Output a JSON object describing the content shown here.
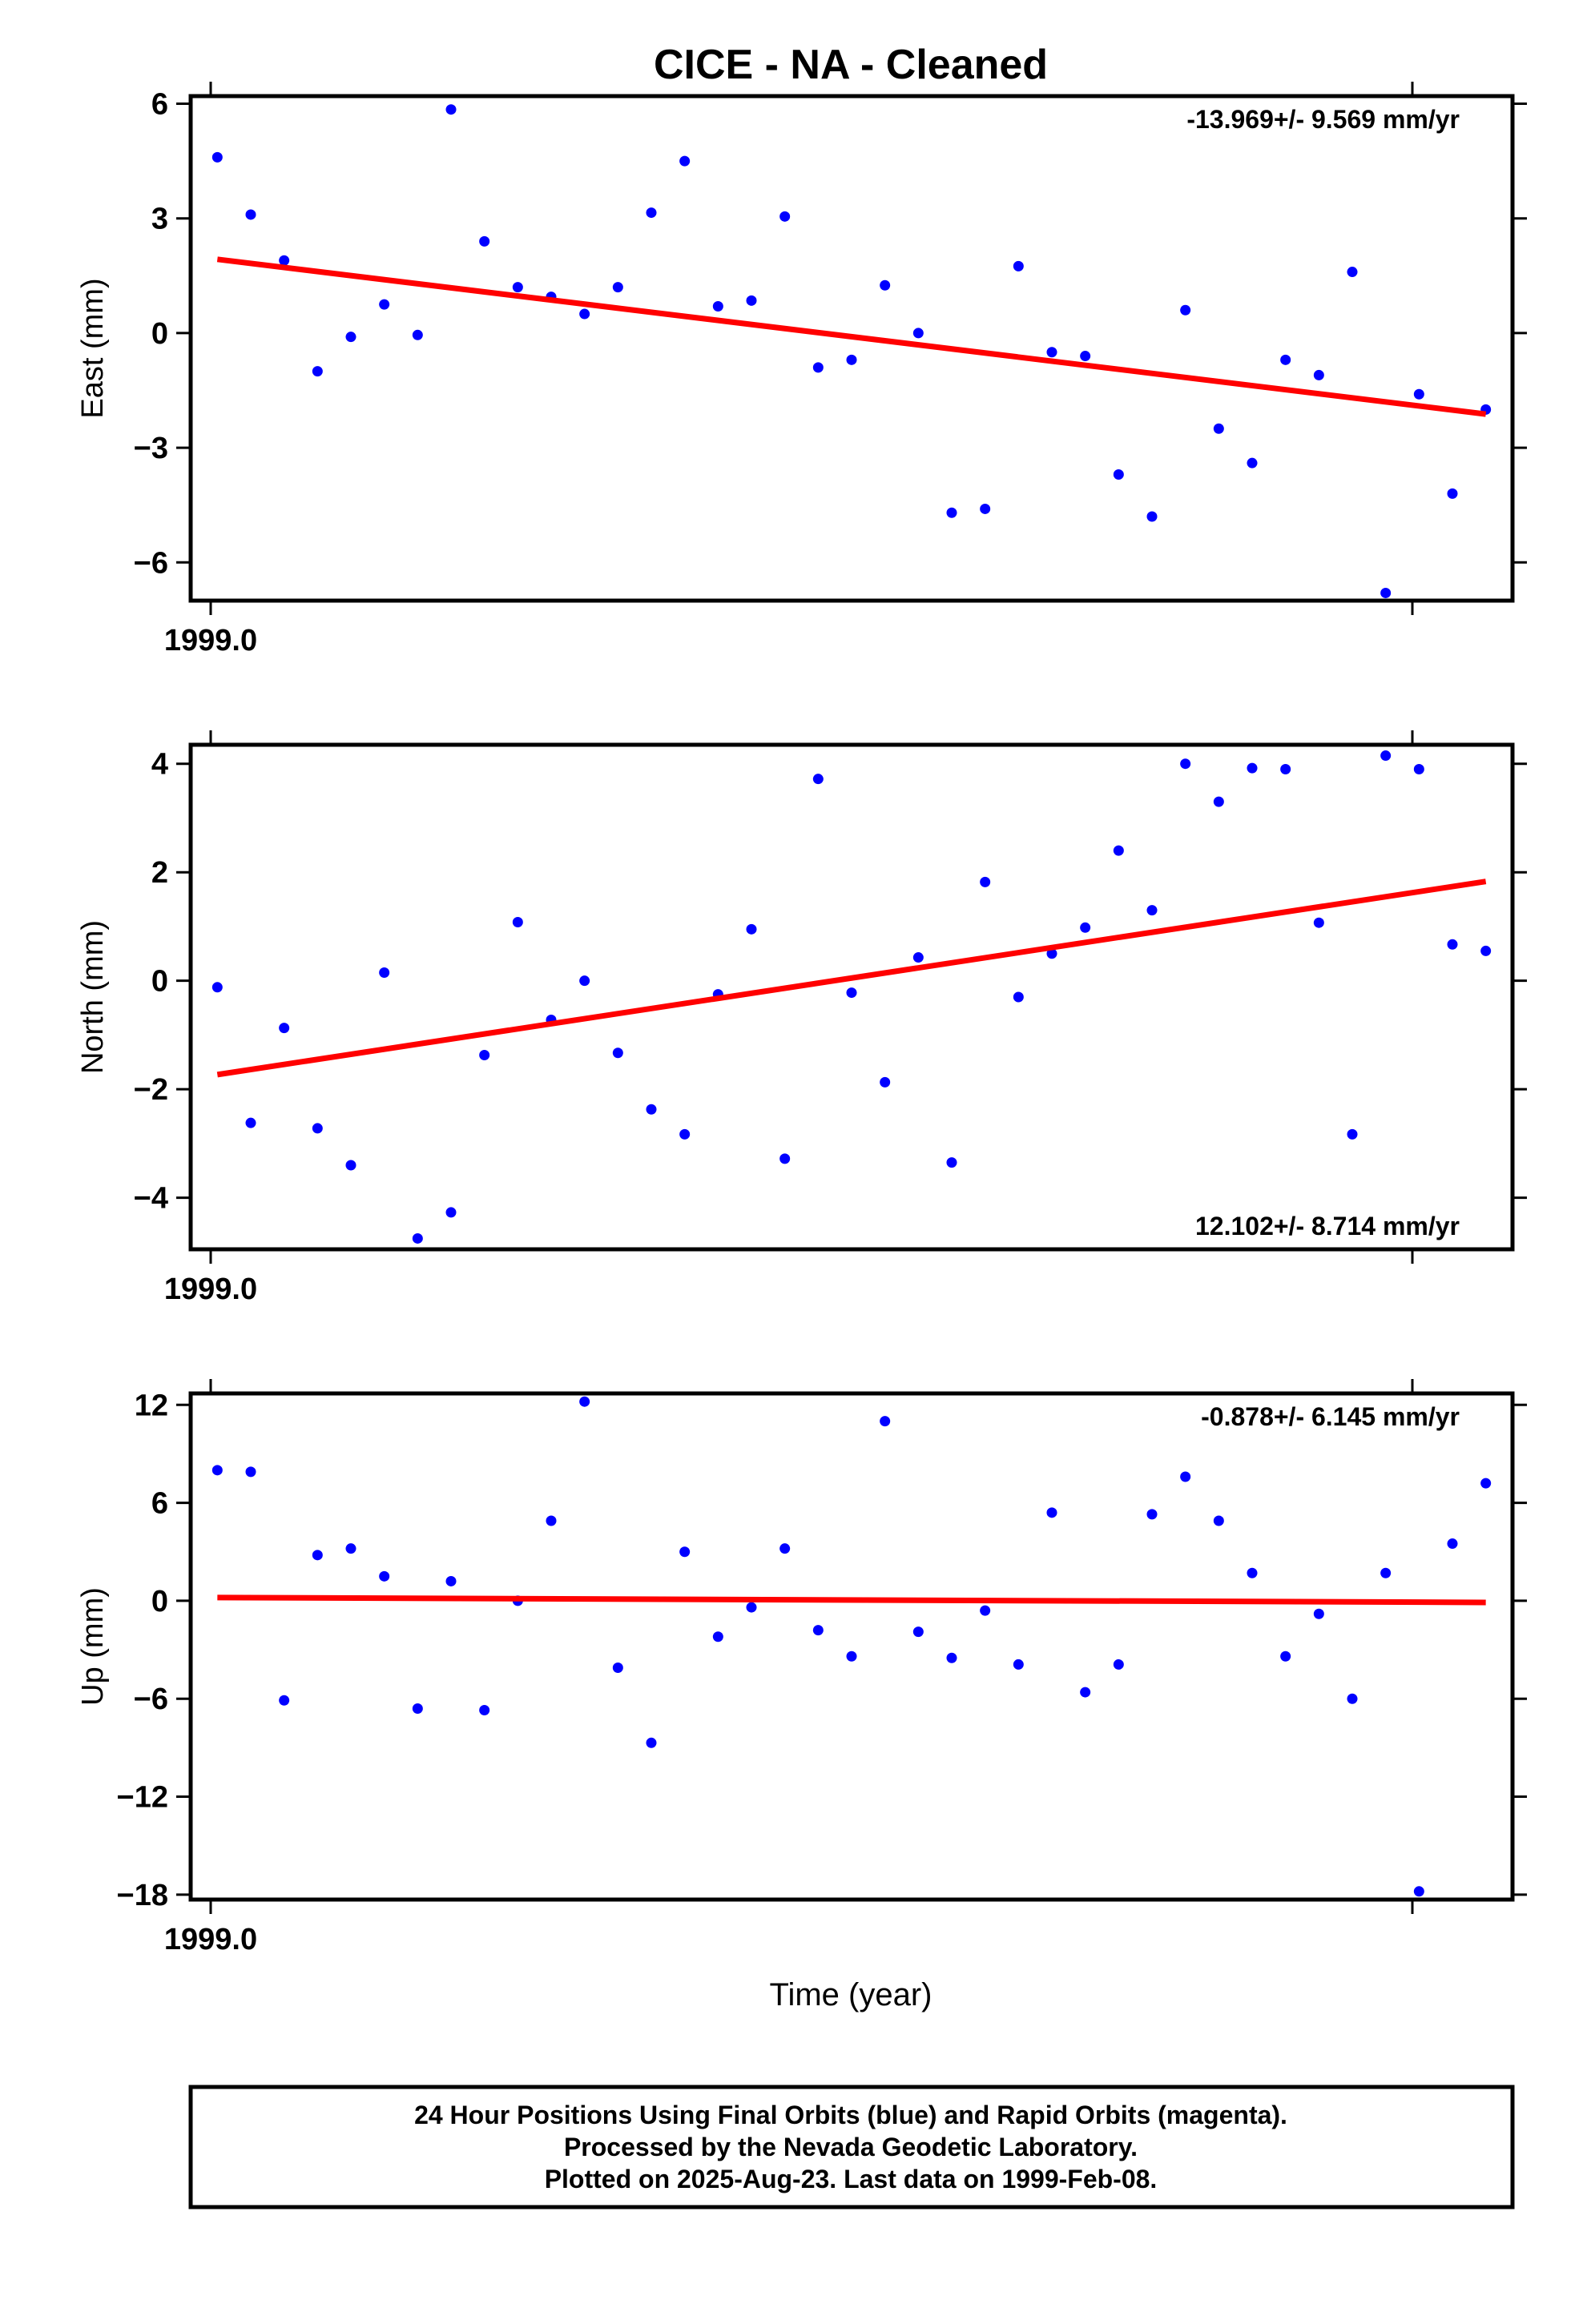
{
  "title": "CICE  - NA - Cleaned",
  "x_axis_label": "Time (year)",
  "footer": {
    "line1": "24 Hour Positions Using Final Orbits (blue) and Rapid Orbits (magenta).",
    "line2": "Processed by the Nevada Geodetic Laboratory.",
    "line3": "Plotted on 2025-Aug-23. Last data on 1999-Feb-08."
  },
  "colors": {
    "final_orbits": "#0000ff",
    "rapid_orbits": "#ff00ff",
    "trend": "#ff0000",
    "frame": "#000000"
  },
  "chart_data": [
    {
      "type": "scatter",
      "name": "East",
      "ylabel": "East (mm)",
      "rate_label": "-13.969+/- 9.569 mm/yr",
      "xlim": [
        -0.6,
        39.0
      ],
      "ylim": [
        -7.0,
        6.2
      ],
      "yticks": [
        6,
        3,
        0,
        -3,
        -6
      ],
      "ytick_labels": [
        "6",
        "3",
        "0",
        "−3",
        "−6"
      ],
      "xtick_label": "1999.0",
      "trend": {
        "x": [
          0.2,
          38.2
        ],
        "y": [
          1.93,
          -2.12
        ]
      },
      "x": [
        0.2,
        1.2,
        2.2,
        3.2,
        4.2,
        5.2,
        6.2,
        7.2,
        8.2,
        9.2,
        10.2,
        11.2,
        12.2,
        13.2,
        14.2,
        15.2,
        16.2,
        17.2,
        18.2,
        19.2,
        20.2,
        21.2,
        22.2,
        23.2,
        24.2,
        25.2,
        26.2,
        27.2,
        28.2,
        29.2,
        30.2,
        31.2,
        32.2,
        33.2,
        34.2,
        35.2,
        36.2,
        37.2,
        38.2
      ],
      "y": [
        4.6,
        3.1,
        1.9,
        -1.0,
        -0.1,
        0.75,
        -0.05,
        5.85,
        2.4,
        1.2,
        0.95,
        0.5,
        1.2,
        3.15,
        4.5,
        0.7,
        0.85,
        3.05,
        -0.9,
        -0.7,
        1.25,
        0.0,
        -4.7,
        -4.6,
        1.75,
        -0.5,
        -0.6,
        -3.7,
        -4.8,
        0.6,
        -2.5,
        -3.4,
        -0.7,
        -1.1,
        1.6,
        -6.8,
        -1.6,
        -4.2,
        -2.0
      ]
    },
    {
      "type": "scatter",
      "name": "North",
      "ylabel": "North (mm)",
      "rate_label": "12.102+/- 8.714 mm/yr",
      "xlim": [
        -0.6,
        39.0
      ],
      "ylim": [
        -4.95,
        4.35
      ],
      "yticks": [
        4,
        2,
        0,
        -2,
        -4
      ],
      "ytick_labels": [
        "4",
        "2",
        "0",
        "−2",
        "−4"
      ],
      "xtick_label": "1999.0",
      "trend": {
        "x": [
          0.2,
          38.2
        ],
        "y": [
          -1.73,
          1.83
        ]
      },
      "x": [
        0.2,
        1.2,
        2.2,
        3.2,
        4.2,
        5.2,
        6.2,
        7.2,
        8.2,
        9.2,
        10.2,
        11.2,
        12.2,
        13.2,
        14.2,
        15.2,
        16.2,
        17.2,
        18.2,
        19.2,
        20.2,
        21.2,
        22.2,
        23.2,
        24.2,
        25.2,
        26.2,
        27.2,
        28.2,
        29.2,
        30.2,
        31.2,
        32.2,
        33.2,
        34.2,
        35.2,
        36.2,
        37.2,
        38.2
      ],
      "y": [
        -0.12,
        -2.62,
        -0.87,
        -2.72,
        -3.4,
        0.15,
        -4.75,
        -4.27,
        -1.37,
        1.08,
        -0.72,
        0.0,
        -1.33,
        -2.37,
        -2.83,
        -0.25,
        0.95,
        -3.28,
        3.72,
        -0.22,
        -1.87,
        0.43,
        -3.35,
        1.82,
        -0.3,
        0.5,
        0.98,
        2.4,
        1.3,
        4.0,
        3.3,
        3.92,
        3.9,
        1.07,
        -2.83,
        4.15,
        3.9,
        0.67,
        0.55
      ]
    },
    {
      "type": "scatter",
      "name": "Up",
      "ylabel": "Up (mm)",
      "rate_label": "-0.878+/- 6.145 mm/yr",
      "xlim": [
        -0.6,
        39.0
      ],
      "ylim": [
        -18.3,
        12.7
      ],
      "yticks": [
        12,
        6,
        0,
        -6,
        -12,
        -18
      ],
      "ytick_labels": [
        "12",
        "6",
        "0",
        "−6",
        "−12",
        "−18"
      ],
      "xtick_label": "1999.0",
      "trend": {
        "x": [
          0.2,
          38.2
        ],
        "y": [
          0.2,
          -0.1
        ]
      },
      "x": [
        0.2,
        1.2,
        2.2,
        3.2,
        4.2,
        5.2,
        6.2,
        7.2,
        8.2,
        9.2,
        10.2,
        11.2,
        12.2,
        13.2,
        14.2,
        15.2,
        16.2,
        17.2,
        18.2,
        19.2,
        20.2,
        21.2,
        22.2,
        23.2,
        24.2,
        25.2,
        26.2,
        27.2,
        28.2,
        29.2,
        30.2,
        31.2,
        32.2,
        33.2,
        34.2,
        35.2,
        36.2,
        37.2,
        38.2
      ],
      "y": [
        8.0,
        7.9,
        -6.1,
        2.8,
        3.2,
        1.5,
        -6.6,
        1.2,
        -6.7,
        0.0,
        4.9,
        12.2,
        -4.1,
        -8.7,
        3.0,
        -2.2,
        -0.4,
        3.2,
        -1.8,
        -3.4,
        11.0,
        -1.9,
        -3.5,
        -0.6,
        -3.9,
        5.4,
        -5.6,
        -3.9,
        5.3,
        7.6,
        4.9,
        1.7,
        -3.4,
        -0.8,
        -6.0,
        1.7,
        -17.8,
        3.5,
        7.2
      ]
    }
  ]
}
